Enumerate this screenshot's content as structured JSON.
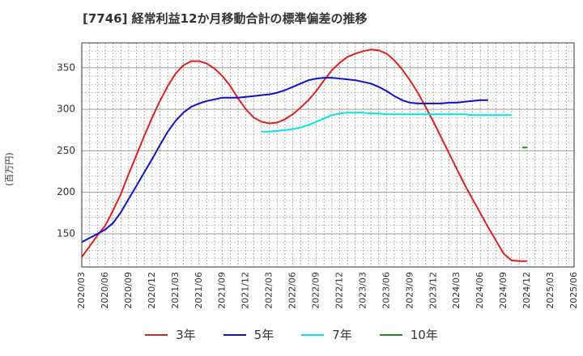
{
  "chart_data": {
    "type": "line",
    "title": "[7746]  経常利益12か月移動合計の標準偏差の推移",
    "ylabel": "(百万円)",
    "xlabel": "",
    "ylim": [
      110,
      380
    ],
    "yticks": [
      150,
      200,
      250,
      300,
      350
    ],
    "grid": true,
    "legend_position": "bottom",
    "x_tick_labels": [
      "2020/03",
      "2020/06",
      "2020/09",
      "2020/12",
      "2021/03",
      "2021/06",
      "2021/09",
      "2021/12",
      "2022/03",
      "2022/06",
      "2022/09",
      "2022/12",
      "2023/03",
      "2023/06",
      "2023/09",
      "2023/12",
      "2024/03",
      "2024/06",
      "2024/09",
      "2024/12",
      "2025/03",
      "2025/06"
    ],
    "x": [
      "2020/03",
      "2020/04",
      "2020/05",
      "2020/06",
      "2020/07",
      "2020/08",
      "2020/09",
      "2020/10",
      "2020/11",
      "2020/12",
      "2021/01",
      "2021/02",
      "2021/03",
      "2021/04",
      "2021/05",
      "2021/06",
      "2021/07",
      "2021/08",
      "2021/09",
      "2021/10",
      "2021/11",
      "2021/12",
      "2022/01",
      "2022/02",
      "2022/03",
      "2022/04",
      "2022/05",
      "2022/06",
      "2022/07",
      "2022/08",
      "2022/09",
      "2022/10",
      "2022/11",
      "2022/12",
      "2023/01",
      "2023/02",
      "2023/03",
      "2023/04",
      "2023/05",
      "2023/06",
      "2023/07",
      "2023/08",
      "2023/09",
      "2023/10",
      "2023/11",
      "2023/12",
      "2024/01",
      "2024/02",
      "2024/03",
      "2024/04",
      "2024/05",
      "2024/06",
      "2024/07",
      "2024/08",
      "2024/09",
      "2024/10",
      "2024/11",
      "2024/12",
      "2025/01",
      "2025/02",
      "2025/03",
      "2025/04",
      "2025/05",
      "2025/06"
    ],
    "series": [
      {
        "name": "3年",
        "color": "#e02020",
        "values": [
          122,
          135,
          148,
          160,
          178,
          198,
          222,
          245,
          268,
          290,
          310,
          328,
          343,
          353,
          358,
          358,
          355,
          349,
          340,
          328,
          313,
          300,
          290,
          285,
          283,
          284,
          288,
          294,
          302,
          311,
          322,
          335,
          347,
          356,
          363,
          367,
          370,
          372,
          371,
          367,
          359,
          348,
          335,
          320,
          303,
          285,
          266,
          247,
          228,
          209,
          192,
          175,
          158,
          142,
          126,
          118,
          117,
          117,
          null,
          null,
          null,
          null,
          null,
          null
        ]
      },
      {
        "name": "5年",
        "color": "#1010cc",
        "values": [
          140,
          145,
          150,
          155,
          163,
          176,
          192,
          208,
          224,
          240,
          257,
          273,
          286,
          296,
          303,
          307,
          310,
          312,
          314,
          314,
          314,
          315,
          316,
          317,
          318,
          320,
          323,
          327,
          331,
          335,
          337,
          338,
          338,
          337,
          336,
          335,
          333,
          331,
          327,
          322,
          316,
          311,
          308,
          307,
          307,
          307,
          307,
          308,
          308,
          309,
          310,
          311,
          311,
          null,
          null,
          null,
          null,
          null,
          null,
          null,
          null,
          null,
          null,
          null
        ]
      },
      {
        "name": "7年",
        "color": "#00e5e5",
        "values": [
          null,
          null,
          null,
          null,
          null,
          null,
          null,
          null,
          null,
          null,
          null,
          null,
          null,
          null,
          null,
          null,
          null,
          null,
          null,
          null,
          null,
          null,
          null,
          273,
          273,
          274,
          275,
          276,
          278,
          281,
          285,
          289,
          293,
          295,
          296,
          296,
          296,
          295,
          295,
          294,
          294,
          294,
          294,
          294,
          294,
          294,
          294,
          294,
          294,
          294,
          293,
          293,
          293,
          293,
          293,
          293,
          null,
          null,
          null,
          null,
          null,
          null,
          null,
          null
        ]
      },
      {
        "name": "10年",
        "color": "#228822",
        "values": [
          null,
          null,
          null,
          null,
          null,
          null,
          null,
          null,
          null,
          null,
          null,
          null,
          null,
          null,
          null,
          null,
          null,
          null,
          null,
          null,
          null,
          null,
          null,
          null,
          null,
          null,
          null,
          null,
          null,
          null,
          null,
          null,
          null,
          null,
          null,
          null,
          null,
          null,
          null,
          null,
          null,
          null,
          null,
          null,
          null,
          null,
          null,
          null,
          null,
          null,
          null,
          null,
          null,
          null,
          null,
          null,
          null,
          254,
          null,
          null,
          null,
          null,
          null,
          null
        ]
      }
    ]
  }
}
